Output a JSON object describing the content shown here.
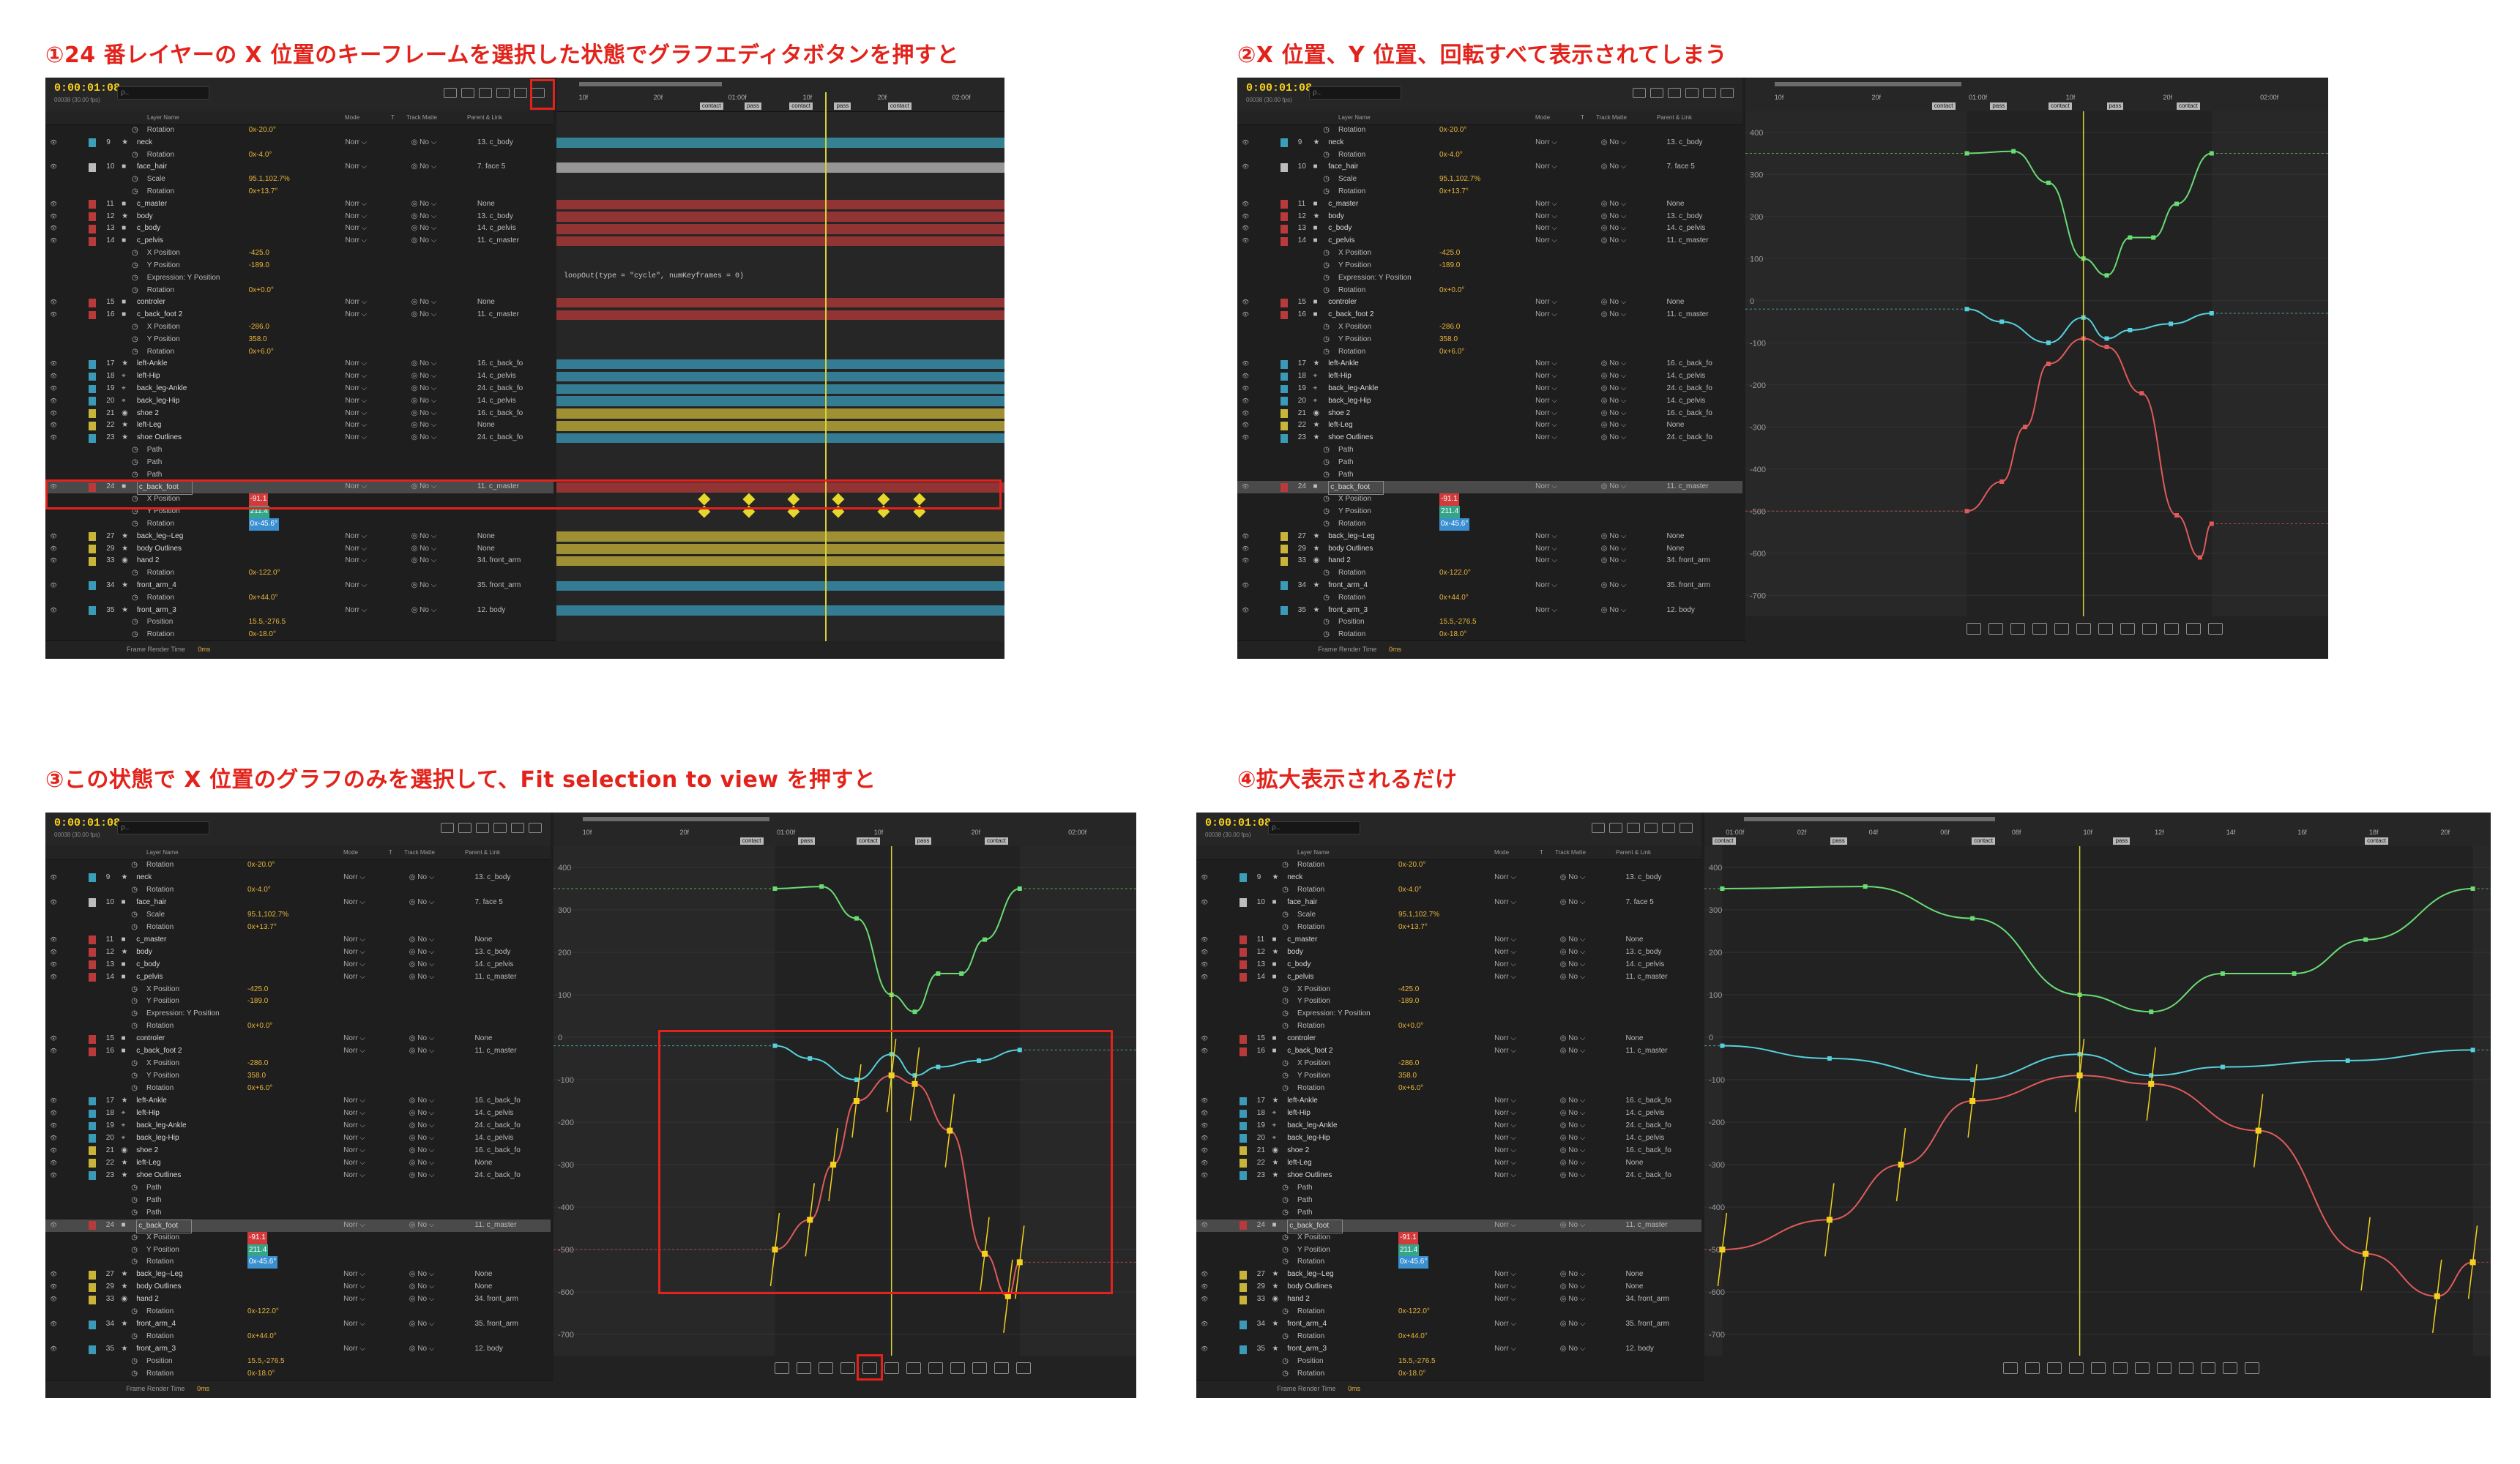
{
  "captions": {
    "p1": "①24 番レイヤーの X 位置のキーフレームを選択した状態でグラフエディタボタンを押すと",
    "p2": "②X 位置、Y 位置、回転すべて表示されてしまう",
    "p3": "③この状態で X 位置のグラフのみを選択して、Fit selection to view を押すと",
    "p4": "④拡大表示されるだけ"
  },
  "app": {
    "timecode": "0:00:01:08",
    "fps": "00038 (30.00 fps)",
    "search_placeholder": "ρ..",
    "columns": {
      "layer_name": "Layer Name",
      "mode": "Mode",
      "t": "T",
      "track_matte": "Track Matte",
      "parent": "Parent & Link"
    },
    "frame_render_time_label": "Frame Render Time",
    "frame_render_time_value": "0ms",
    "expression": "loopOut(type = \"cycle\", numKeyframes = 0)"
  },
  "ruler": {
    "labels": [
      "10f",
      "20f",
      "01:00f",
      "10f",
      "20f",
      "02:00f"
    ],
    "labels_zoomed": [
      "01:00f",
      "02f",
      "04f",
      "06f",
      "08f",
      "10f",
      "12f",
      "14f",
      "16f",
      "18f",
      "20f"
    ],
    "markers": [
      "contact",
      "pass",
      "contact",
      "pass",
      "contact"
    ]
  },
  "graph": {
    "y_ticks": [
      "400",
      "300",
      "200",
      "100",
      "0",
      "-100",
      "-200",
      "-300",
      "-400",
      "-500",
      "-600",
      "-700"
    ],
    "colors": {
      "x_position": "#e05a5a",
      "y_position": "#56d1dc",
      "rotation": "#69dc74",
      "playhead": "#d8d23a",
      "handle": "#f4d11f"
    }
  },
  "layers": [
    {
      "kind": "prop",
      "name": "Rotation",
      "value": "0x-20.0°"
    },
    {
      "kind": "layer",
      "num": "9",
      "name": "neck",
      "color": "#3aa0b8",
      "icon": "star",
      "parent": "13. c_body"
    },
    {
      "kind": "prop",
      "name": "Rotation",
      "value": "0x-4.0°"
    },
    {
      "kind": "layer",
      "num": "10",
      "name": "face_hair",
      "color": "#bcbcbc",
      "icon": "comp",
      "parent": "7. face 5"
    },
    {
      "kind": "prop",
      "name": "Scale",
      "value": "95.1,102.7%"
    },
    {
      "kind": "prop",
      "name": "Rotation",
      "value": "0x+13.7°"
    },
    {
      "kind": "layer",
      "num": "11",
      "name": "c_master",
      "color": "#b83a3a",
      "icon": "null",
      "parent": "None"
    },
    {
      "kind": "layer",
      "num": "12",
      "name": "body",
      "color": "#b83a3a",
      "icon": "star",
      "parent": "13. c_body"
    },
    {
      "kind": "layer",
      "num": "13",
      "name": "c_body",
      "color": "#b83a3a",
      "icon": "null",
      "parent": "14. c_pelvis"
    },
    {
      "kind": "layer",
      "num": "14",
      "name": "c_pelvis",
      "color": "#b83a3a",
      "icon": "null",
      "parent": "11. c_master"
    },
    {
      "kind": "prop",
      "name": "X Position",
      "value": "-425.0"
    },
    {
      "kind": "prop",
      "name": "Y Position",
      "value": "-189.0"
    },
    {
      "kind": "prop",
      "name": "Expression: Y Position",
      "value": ""
    },
    {
      "kind": "prop",
      "name": "Rotation",
      "value": "0x+0.0°"
    },
    {
      "kind": "layer",
      "num": "15",
      "name": "controler",
      "color": "#b83a3a",
      "icon": "null",
      "parent": "None"
    },
    {
      "kind": "layer",
      "num": "16",
      "name": "c_back_foot 2",
      "color": "#b83a3a",
      "icon": "null",
      "parent": "11. c_master"
    },
    {
      "kind": "prop",
      "name": "X Position",
      "value": "-286.0"
    },
    {
      "kind": "prop",
      "name": "Y Position",
      "value": "358.0"
    },
    {
      "kind": "prop",
      "name": "Rotation",
      "value": "0x+6.0°"
    },
    {
      "kind": "layer",
      "num": "17",
      "name": "left-Ankle",
      "color": "#3a9ab8",
      "icon": "star",
      "parent": "16. c_back_fo"
    },
    {
      "kind": "layer",
      "num": "18",
      "name": "left-Hip",
      "color": "#3a9ab8",
      "icon": "pin",
      "parent": "14. c_pelvis"
    },
    {
      "kind": "layer",
      "num": "19",
      "name": "back_leg-Ankle",
      "color": "#3a9ab8",
      "icon": "pin",
      "parent": "24. c_back_fo"
    },
    {
      "kind": "layer",
      "num": "20",
      "name": "back_leg-Hip",
      "color": "#3a9ab8",
      "icon": "pin",
      "parent": "14. c_pelvis"
    },
    {
      "kind": "layer",
      "num": "21",
      "name": "shoe 2",
      "color": "#c9b43a",
      "icon": "shape",
      "parent": "16. c_back_fo"
    },
    {
      "kind": "layer",
      "num": "22",
      "name": "left-Leg",
      "color": "#c9b43a",
      "icon": "star",
      "parent": "None"
    },
    {
      "kind": "layer",
      "num": "23",
      "name": "shoe Outlines",
      "color": "#3a9ab8",
      "icon": "star",
      "parent": "24. c_back_fo"
    },
    {
      "kind": "prop",
      "name": "Path",
      "value": ""
    },
    {
      "kind": "prop",
      "name": "Path",
      "value": ""
    },
    {
      "kind": "prop",
      "name": "Path",
      "value": ""
    },
    {
      "kind": "layer",
      "num": "24",
      "name": "c_back_foot",
      "color": "#b83a3a",
      "icon": "null",
      "parent": "11. c_master",
      "selected": true
    },
    {
      "kind": "prop",
      "name": "X Position",
      "value": "-91.1",
      "hl": "#d23b3b"
    },
    {
      "kind": "prop",
      "name": "Y Position",
      "value": "211.4",
      "hl": "#35a58a"
    },
    {
      "kind": "prop",
      "name": "Rotation",
      "value": "0x-45.6°",
      "hl": "#3a8fd0"
    },
    {
      "kind": "layer",
      "num": "27",
      "name": "back_leg--Leg",
      "color": "#c9b43a",
      "icon": "star",
      "parent": "None"
    },
    {
      "kind": "layer",
      "num": "29",
      "name": "body Outlines",
      "color": "#c9b43a",
      "icon": "star",
      "parent": "None"
    },
    {
      "kind": "layer",
      "num": "33",
      "name": "hand 2",
      "color": "#c9b43a",
      "icon": "shape",
      "parent": "34. front_arm"
    },
    {
      "kind": "prop",
      "name": "Rotation",
      "value": "0x-122.0°"
    },
    {
      "kind": "layer",
      "num": "34",
      "name": "front_arm_4",
      "color": "#3a9ab8",
      "icon": "star",
      "parent": "35. front_arm"
    },
    {
      "kind": "prop",
      "name": "Rotation",
      "value": "0x+44.0°"
    },
    {
      "kind": "layer",
      "num": "35",
      "name": "front_arm_3",
      "color": "#3a9ab8",
      "icon": "star",
      "parent": "12. body"
    },
    {
      "kind": "prop",
      "name": "Position",
      "value": "15.5,-276.5"
    },
    {
      "kind": "prop",
      "name": "Rotation",
      "value": "0x-18.0°"
    }
  ],
  "curves": {
    "rotation": [
      [
        0.38,
        350
      ],
      [
        0.46,
        355
      ],
      [
        0.52,
        280
      ],
      [
        0.58,
        100
      ],
      [
        0.62,
        60
      ],
      [
        0.66,
        150
      ],
      [
        0.7,
        150
      ],
      [
        0.74,
        230
      ],
      [
        0.8,
        350
      ]
    ],
    "y_position": [
      [
        0.38,
        -20
      ],
      [
        0.44,
        -50
      ],
      [
        0.52,
        -100
      ],
      [
        0.58,
        -40
      ],
      [
        0.62,
        -90
      ],
      [
        0.66,
        -70
      ],
      [
        0.73,
        -55
      ],
      [
        0.8,
        -30
      ]
    ],
    "x_position": [
      [
        0.38,
        -500
      ],
      [
        0.44,
        -430
      ],
      [
        0.48,
        -300
      ],
      [
        0.52,
        -150
      ],
      [
        0.58,
        -90
      ],
      [
        0.62,
        -110
      ],
      [
        0.68,
        -220
      ],
      [
        0.74,
        -510
      ],
      [
        0.78,
        -610
      ],
      [
        0.8,
        -530
      ]
    ]
  }
}
